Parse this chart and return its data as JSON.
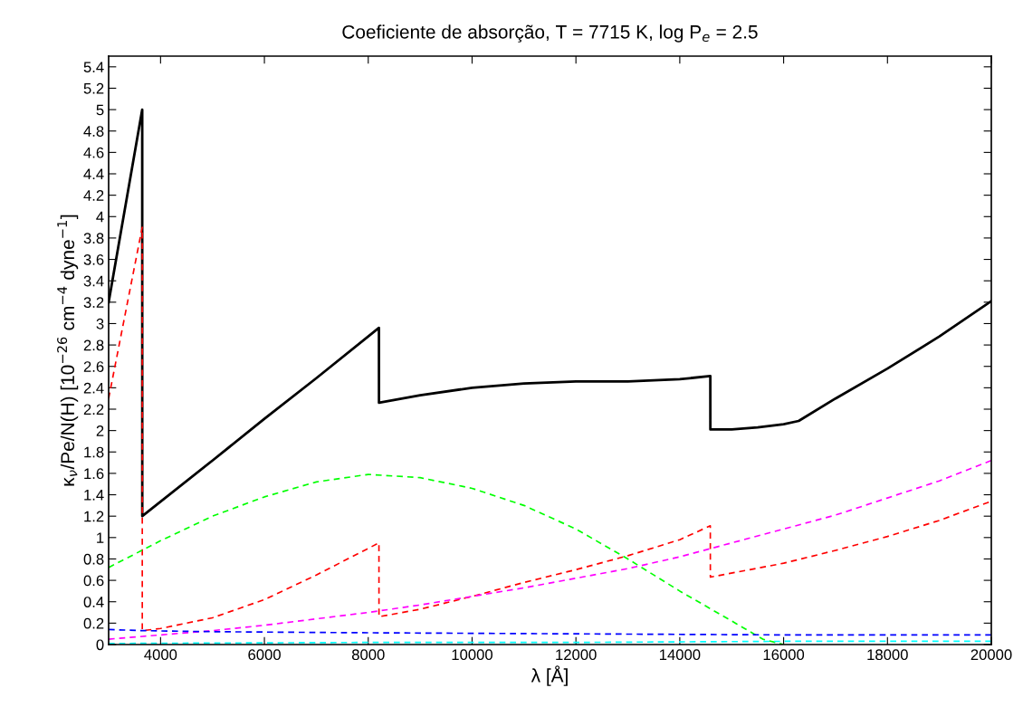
{
  "chart_data": {
    "type": "line",
    "title": "Coeficiente de absorção, T = 7715 K, log P$_{e}$ = 2.5",
    "xlabel": "λ [Å]",
    "ylabel": "κ$_{ν}$/Pe/N(H) [10$^{−26}$ cm$^{−4}$ dyne$^{−1}$]",
    "xlim": [
      3000,
      20000
    ],
    "ylim": [
      0,
      5.5
    ],
    "xticks": [
      4000,
      6000,
      8000,
      10000,
      12000,
      14000,
      16000,
      18000,
      20000
    ],
    "yticks": [
      0,
      0.2,
      0.4,
      0.6,
      0.8,
      1,
      1.2,
      1.4,
      1.6,
      1.8,
      2,
      2.2,
      2.4,
      2.6,
      2.8,
      3,
      3.2,
      3.4,
      3.6,
      3.8,
      4,
      4.2,
      4.4,
      4.6,
      4.8,
      5,
      5.2,
      5.4
    ],
    "grid": false,
    "legend": false,
    "marker": "none",
    "series": [
      {
        "color": "#000000",
        "line_style": "solid",
        "x": [
          3000,
          3647,
          3648,
          5000,
          6000,
          7000,
          8206,
          8207,
          9000,
          10000,
          11000,
          12000,
          13000,
          14000,
          14588,
          14589,
          15000,
          15500,
          16000,
          16290,
          17000,
          18000,
          19000,
          20000
        ],
        "values": [
          3.2,
          5.0,
          1.2,
          1.72,
          2.11,
          2.49,
          2.96,
          2.26,
          2.33,
          2.4,
          2.44,
          2.46,
          2.46,
          2.48,
          2.51,
          2.01,
          2.01,
          2.03,
          2.06,
          2.09,
          2.3,
          2.58,
          2.88,
          3.21
        ]
      },
      {
        "color": "#ff0000",
        "line_style": "dashed",
        "x": [
          3000,
          3647,
          3648,
          4000,
          5000,
          6000,
          7000,
          8206,
          8207,
          9000,
          10000,
          11000,
          12000,
          13000,
          14000,
          14588,
          14589,
          16000,
          17000,
          18000,
          19000,
          20000
        ],
        "values": [
          2.3,
          3.9,
          0.13,
          0.15,
          0.25,
          0.42,
          0.65,
          0.95,
          0.26,
          0.33,
          0.45,
          0.58,
          0.7,
          0.83,
          0.98,
          1.11,
          0.63,
          0.76,
          0.88,
          1.01,
          1.16,
          1.34
        ]
      },
      {
        "color": "#ff00ff",
        "line_style": "dashed",
        "x": [
          3000,
          4000,
          5000,
          6000,
          7000,
          8000,
          9000,
          10000,
          11000,
          12000,
          13000,
          14000,
          15000,
          16000,
          17000,
          18000,
          19000,
          20000
        ],
        "values": [
          0.05,
          0.09,
          0.13,
          0.18,
          0.24,
          0.3,
          0.37,
          0.45,
          0.53,
          0.62,
          0.71,
          0.82,
          0.95,
          1.08,
          1.21,
          1.37,
          1.53,
          1.72
        ]
      },
      {
        "color": "#00ff00",
        "line_style": "dashed",
        "x": [
          3000,
          4000,
          5000,
          6000,
          7000,
          8000,
          9000,
          10000,
          11000,
          12000,
          13000,
          14000,
          15000,
          15600,
          16000
        ],
        "values": [
          0.72,
          0.97,
          1.2,
          1.38,
          1.52,
          1.59,
          1.56,
          1.46,
          1.3,
          1.08,
          0.8,
          0.5,
          0.22,
          0.05,
          0.0
        ]
      },
      {
        "color": "#0000ff",
        "line_style": "dashed",
        "x": [
          3000,
          3647,
          5000,
          8000,
          12000,
          16000,
          20000
        ],
        "values": [
          0.14,
          0.13,
          0.12,
          0.11,
          0.1,
          0.09,
          0.09
        ]
      },
      {
        "color": "#00ffff",
        "line_style": "dashed",
        "x": [
          3000,
          8000,
          12000,
          16000,
          20000
        ],
        "values": [
          0.01,
          0.02,
          0.02,
          0.03,
          0.03
        ]
      }
    ]
  }
}
